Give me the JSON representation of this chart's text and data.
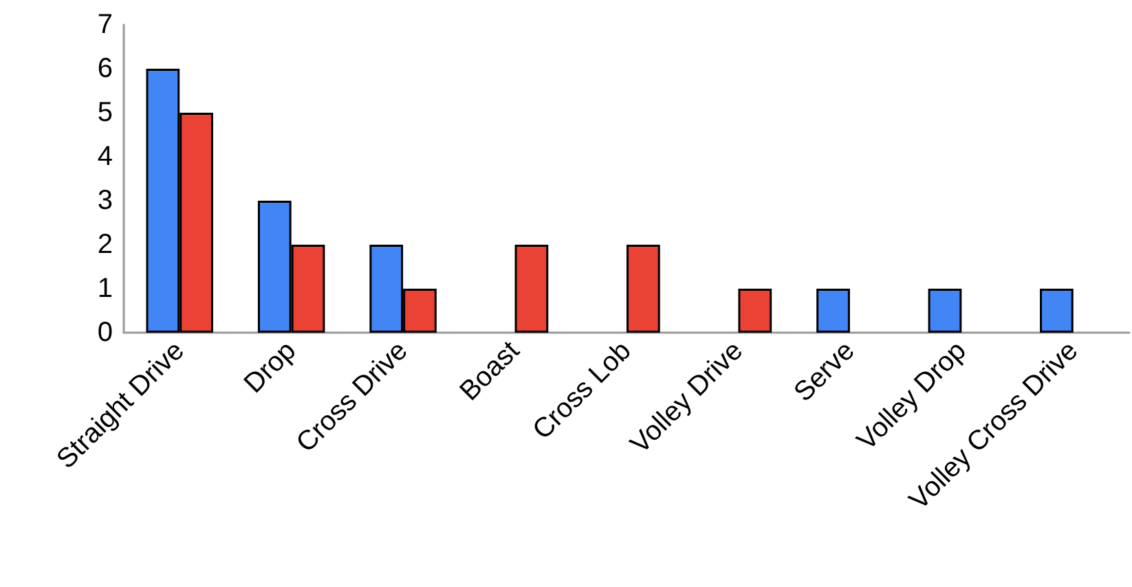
{
  "chart_data": {
    "type": "bar",
    "categories": [
      "Straight Drive",
      "Drop",
      "Cross Drive",
      "Boast",
      "Cross Lob",
      "Volley Drive",
      "Serve",
      "Volley Drop",
      "Volley Cross Drive"
    ],
    "series": [
      {
        "color": "#4285f4",
        "values": [
          6,
          3,
          2,
          null,
          null,
          null,
          1,
          1,
          1
        ]
      },
      {
        "color": "#ea4335",
        "values": [
          5,
          2,
          1,
          2,
          2,
          1,
          null,
          null,
          null
        ]
      }
    ],
    "ylim": [
      0,
      7
    ],
    "yticks": [
      0,
      1,
      2,
      3,
      4,
      5,
      6,
      7
    ],
    "grid": false
  }
}
